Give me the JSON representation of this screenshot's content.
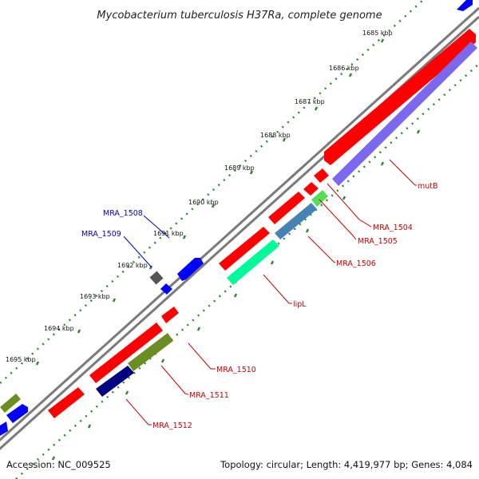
{
  "title": "Mycobacterium tuberculosis H37Ra, complete genome",
  "accession": "Accession: NC_009525",
  "summary": "Topology: circular; Length: 4,419,977 bp; Genes: 4,084",
  "colors": {
    "backbone": "#808080",
    "ruler": "#2a8a2a",
    "label_plus": "#0000cc",
    "label_minus": "#cc0000"
  },
  "ticks": [
    "1685 kbp",
    "1686 kbp",
    "1687 kbp",
    "1688 kbp",
    "1689 kbp",
    "1690 kbp",
    "1691 kbp",
    "1692 kbp",
    "1693 kbp",
    "1694 kbp",
    "1695 kbp"
  ],
  "gene_labels": [
    {
      "name": "MRA_1508",
      "strand": "plus"
    },
    {
      "name": "MRA_1509",
      "strand": "plus"
    },
    {
      "name": "mutB",
      "strand": "minus"
    },
    {
      "name": "MRA_1504",
      "strand": "minus"
    },
    {
      "name": "MRA_1505",
      "strand": "minus"
    },
    {
      "name": "MRA_1506",
      "strand": "minus"
    },
    {
      "name": "lipL",
      "strand": "minus"
    },
    {
      "name": "MRA_1510",
      "strand": "minus"
    },
    {
      "name": "MRA_1511",
      "strand": "minus"
    },
    {
      "name": "MRA_1512",
      "strand": "minus"
    }
  ],
  "features": [
    {
      "name": "forward-gene",
      "track": "plus-outer",
      "color": "#0000ff"
    },
    {
      "name": "reverse-gene",
      "track": "minus-outer",
      "color": "#ff0000"
    },
    {
      "name": "cog-feature",
      "track": "minus-inner",
      "color": "#7b68ee"
    }
  ]
}
